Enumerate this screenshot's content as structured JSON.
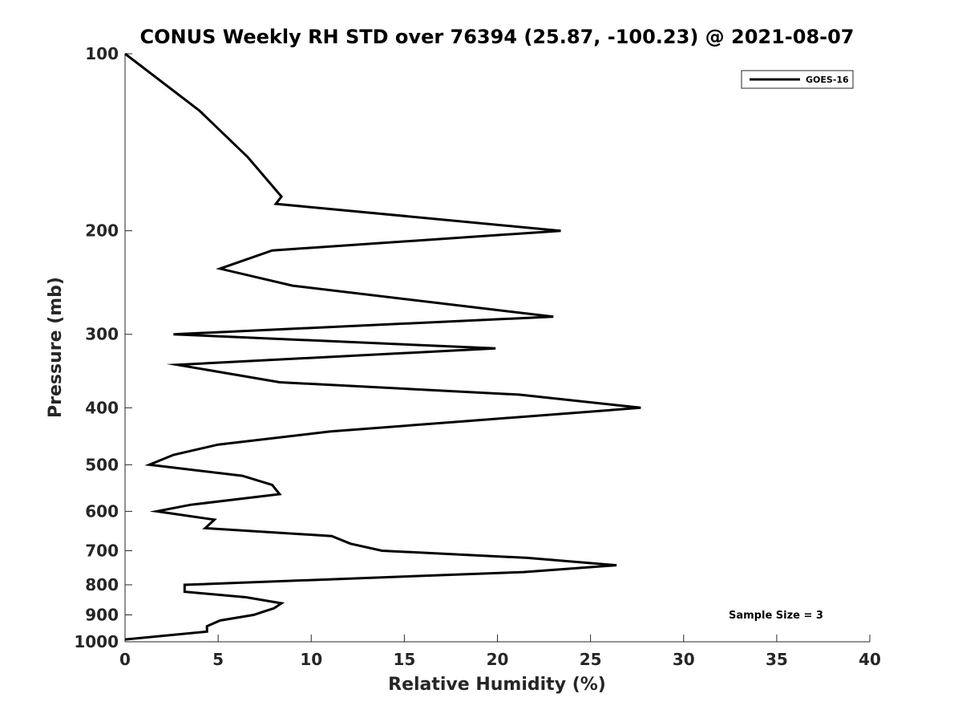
{
  "chart_data": {
    "type": "line",
    "title": "CONUS Weekly RH STD over 76394 (25.87, -100.23) @ 2021-08-07",
    "xlabel": "Relative Humidity (%)",
    "ylabel": "Pressure (mb)",
    "xlim": [
      0,
      40
    ],
    "ylim": [
      100,
      1000
    ],
    "y_scale": "log",
    "y_reversed": true,
    "grid": false,
    "legend_position": "top-right",
    "line_color": "#000000",
    "x_ticks": [
      "0",
      "5",
      "10",
      "15",
      "20",
      "25",
      "30",
      "35",
      "40"
    ],
    "y_ticks": [
      "100",
      "200",
      "300",
      "400",
      "500",
      "600",
      "700",
      "800",
      "900",
      "1000"
    ],
    "annotation": "Sample Size = 3",
    "series": [
      {
        "name": "GOES-16",
        "points": [
          [
            0,
            100
          ],
          [
            4,
            125
          ],
          [
            6.6,
            150
          ],
          [
            8.4,
            175
          ],
          [
            8.1,
            180
          ],
          [
            23.4,
            200
          ],
          [
            7.9,
            216
          ],
          [
            5.1,
            232
          ],
          [
            9,
            248
          ],
          [
            23,
            280
          ],
          [
            2.6,
            300
          ],
          [
            19.9,
            317
          ],
          [
            2.8,
            338
          ],
          [
            8.3,
            362
          ],
          [
            21.2,
            380
          ],
          [
            27.7,
            400
          ],
          [
            18.5,
            421
          ],
          [
            11,
            439
          ],
          [
            5,
            462
          ],
          [
            2.6,
            481
          ],
          [
            1.3,
            500
          ],
          [
            6.3,
            522
          ],
          [
            7.9,
            541
          ],
          [
            8.3,
            561
          ],
          [
            3.5,
            585
          ],
          [
            1.7,
            600
          ],
          [
            4.8,
            620
          ],
          [
            4.3,
            641
          ],
          [
            11.1,
            661
          ],
          [
            12.1,
            681
          ],
          [
            13.8,
            700
          ],
          [
            21.6,
            720
          ],
          [
            26.4,
            741
          ],
          [
            21.4,
            761
          ],
          [
            3.2,
            800
          ],
          [
            3.2,
            822
          ],
          [
            6.5,
            840
          ],
          [
            8.4,
            860
          ],
          [
            8,
            877
          ],
          [
            6.9,
            900
          ],
          [
            5.1,
            920
          ],
          [
            4.4,
            941
          ],
          [
            4.4,
            961
          ],
          [
            0,
            991
          ]
        ]
      }
    ]
  }
}
